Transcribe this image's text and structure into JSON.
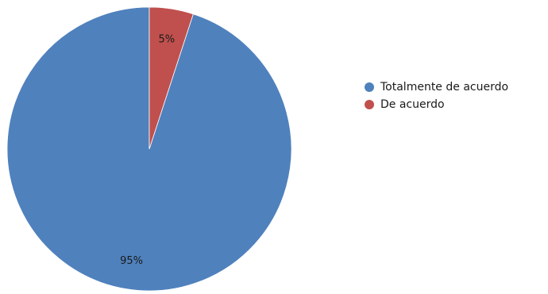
{
  "chart_data": {
    "type": "pie",
    "slices": [
      {
        "label": "Totalmente de acuerdo",
        "value": 95,
        "display": "95%",
        "color": "#4f81bd"
      },
      {
        "label": "De acuerdo",
        "value": 5,
        "display": "5%",
        "color": "#c0504d"
      }
    ],
    "legend_position": "right",
    "start_angle": "top",
    "direction": "counterclockwise"
  }
}
